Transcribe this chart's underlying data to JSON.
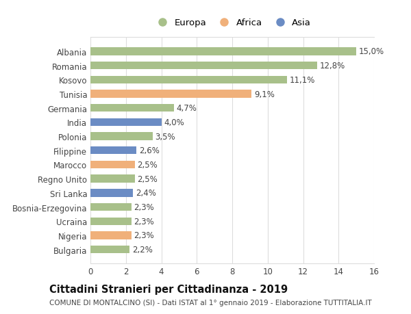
{
  "categories": [
    "Albania",
    "Romania",
    "Kosovo",
    "Tunisia",
    "Germania",
    "India",
    "Polonia",
    "Filippine",
    "Marocco",
    "Regno Unito",
    "Sri Lanka",
    "Bosnia-Erzegovina",
    "Ucraina",
    "Nigeria",
    "Bulgaria"
  ],
  "values": [
    15.0,
    12.8,
    11.1,
    9.1,
    4.7,
    4.0,
    3.5,
    2.6,
    2.5,
    2.5,
    2.4,
    2.3,
    2.3,
    2.3,
    2.2
  ],
  "labels": [
    "15,0%",
    "12,8%",
    "11,1%",
    "9,1%",
    "4,7%",
    "4,0%",
    "3,5%",
    "2,6%",
    "2,5%",
    "2,5%",
    "2,4%",
    "2,3%",
    "2,3%",
    "2,3%",
    "2,2%"
  ],
  "continents": [
    "Europa",
    "Europa",
    "Europa",
    "Africa",
    "Europa",
    "Asia",
    "Europa",
    "Asia",
    "Africa",
    "Europa",
    "Asia",
    "Europa",
    "Europa",
    "Africa",
    "Europa"
  ],
  "colors": {
    "Europa": "#a8c08a",
    "Africa": "#f0b07a",
    "Asia": "#6b8cc4"
  },
  "xlim": [
    0,
    16
  ],
  "xticks": [
    0,
    2,
    4,
    6,
    8,
    10,
    12,
    14,
    16
  ],
  "title": "Cittadini Stranieri per Cittadinanza - 2019",
  "subtitle": "COMUNE DI MONTALCINO (SI) - Dati ISTAT al 1° gennaio 2019 - Elaborazione TUTTITALIA.IT",
  "background_color": "#ffffff",
  "grid_color": "#dddddd",
  "bar_height": 0.55,
  "label_fontsize": 8.5,
  "title_fontsize": 10.5,
  "subtitle_fontsize": 7.5,
  "ytick_fontsize": 8.5,
  "xtick_fontsize": 8.5
}
